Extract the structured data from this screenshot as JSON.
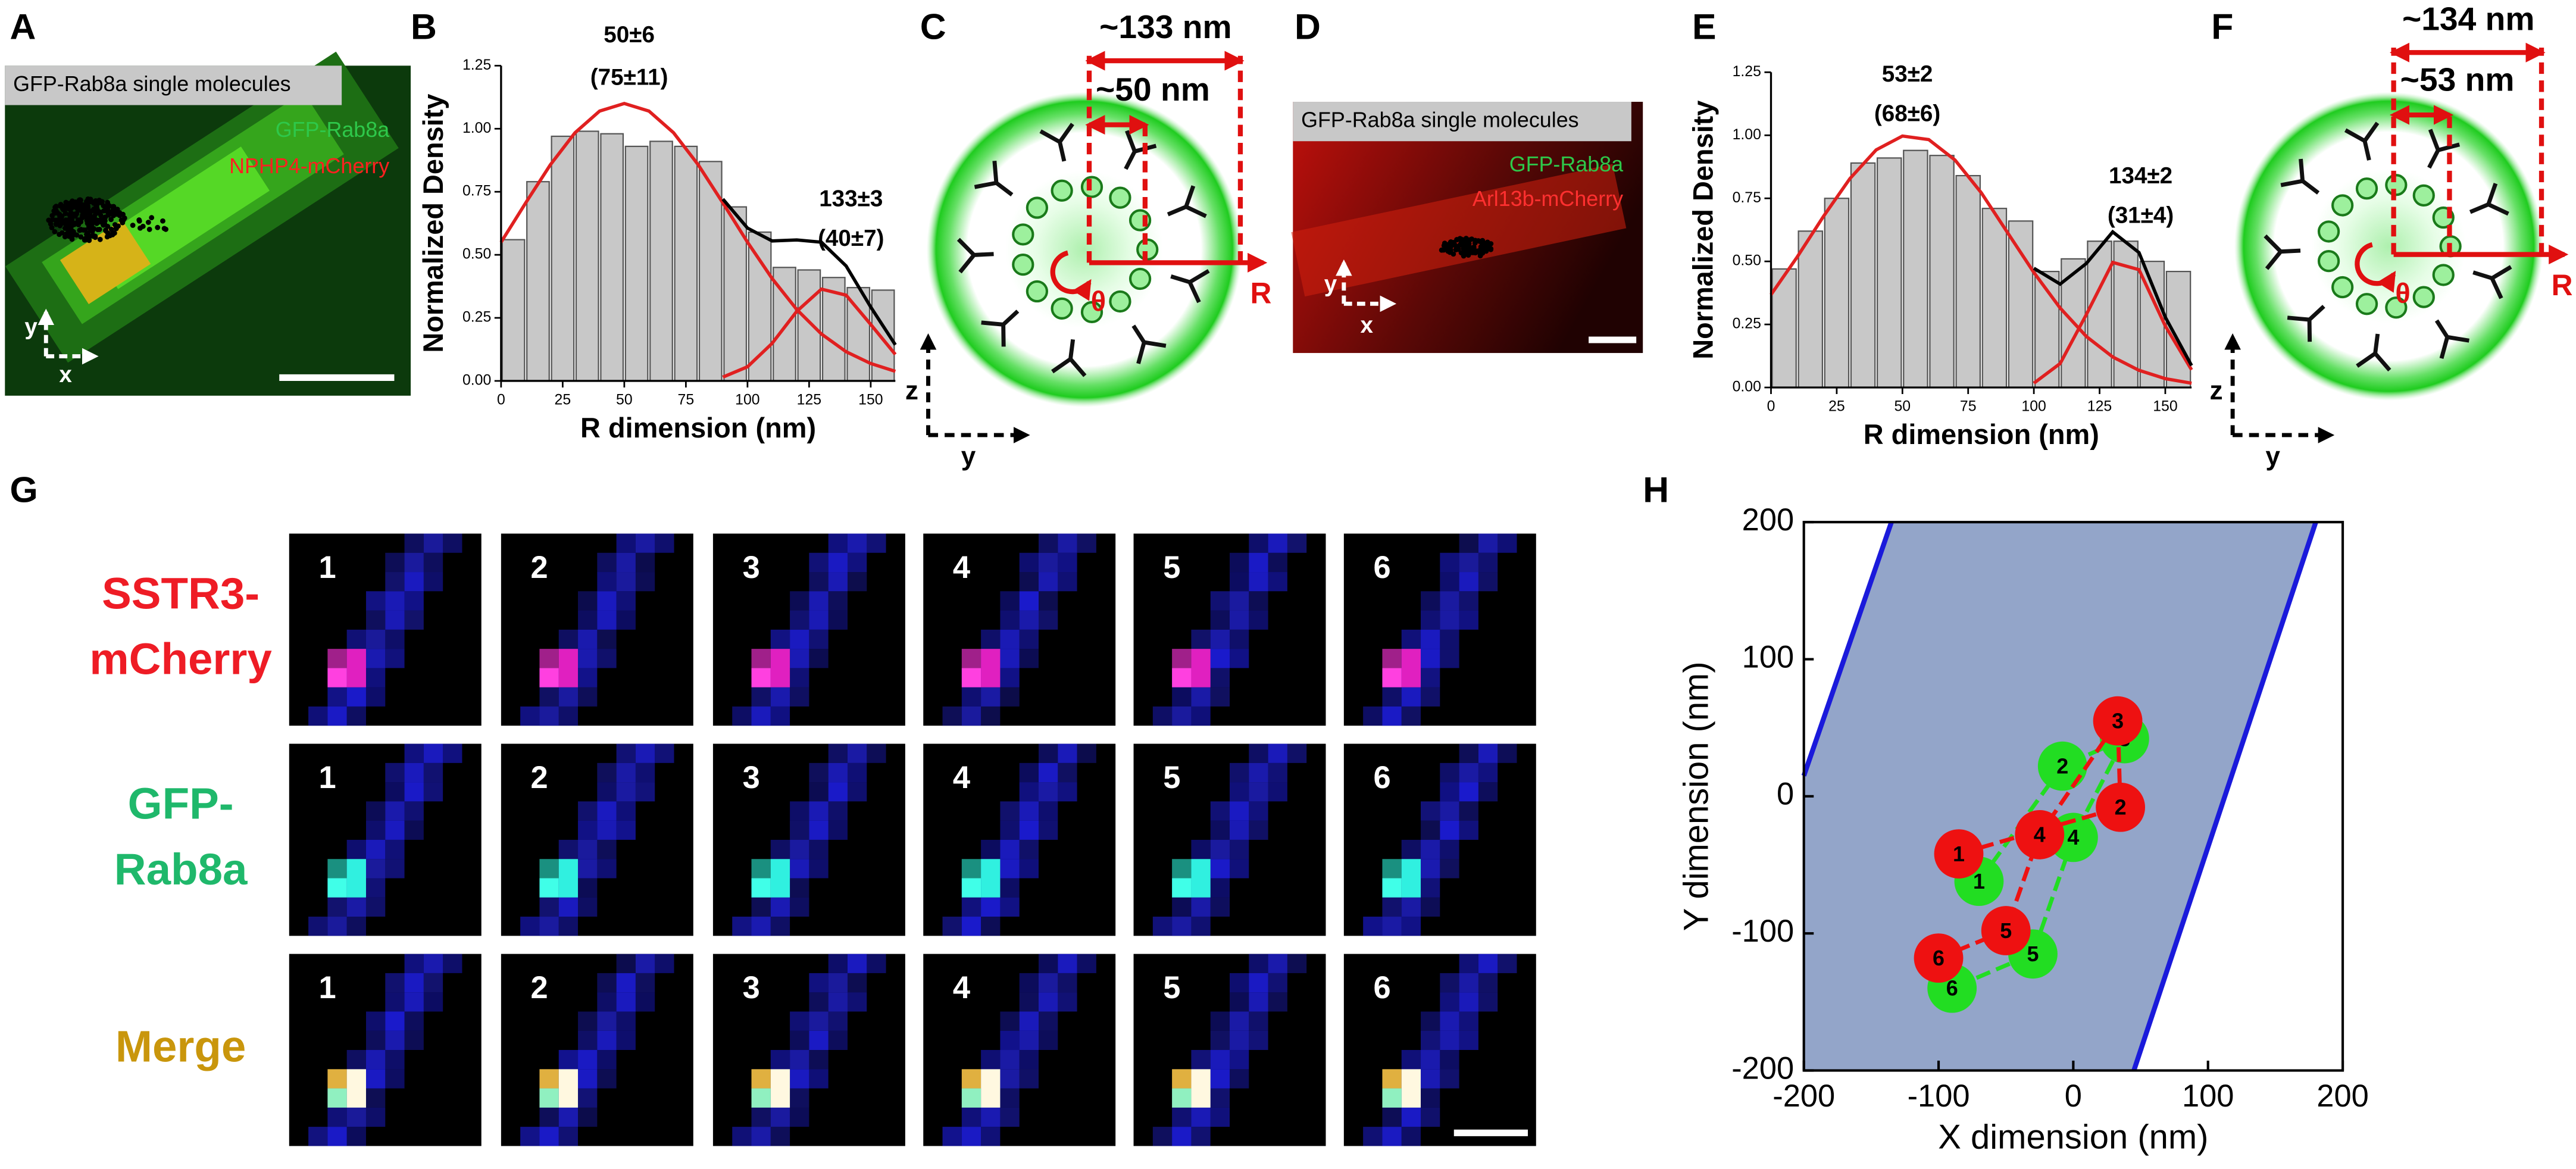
{
  "panel_labels": [
    "A",
    "B",
    "C",
    "D",
    "E",
    "F",
    "G",
    "H"
  ],
  "panel_a": {
    "title": "GFP-Rab8a single molecules",
    "channel_green": "GFP-Rab8a",
    "channel_red": "NPHP4-mCherry",
    "axis_y": "y",
    "axis_x": "x"
  },
  "panel_c": {
    "outer": "~133 nm",
    "inner": "~50 nm",
    "radius": "R",
    "angle": "θ",
    "axis_z": "z",
    "axis_y": "y"
  },
  "panel_d": {
    "title": "GFP-Rab8a single molecules",
    "channel_green": "GFP-Rab8a",
    "channel_red": "Arl13b-mCherry",
    "axis_y": "y",
    "axis_x": "x"
  },
  "panel_f": {
    "outer": "~134 nm",
    "inner": "~53 nm",
    "radius": "R",
    "angle": "θ",
    "axis_z": "z",
    "axis_y": "y"
  },
  "panel_g": {
    "rows": [
      [
        "SSTR3-",
        "mCherry"
      ],
      [
        "GFP-",
        "Rab8a"
      ],
      [
        "Merge"
      ]
    ],
    "row_colors": [
      "#ee1c25",
      "#1fb86b",
      "#c9960c"
    ],
    "frames": [
      "1",
      "2",
      "3",
      "4",
      "5",
      "6"
    ]
  },
  "chart_data": [
    {
      "type": "histogram",
      "ylabel": "Normalized Density",
      "xlabel": "R dimension (nm)",
      "bins": [
        0,
        10,
        20,
        30,
        40,
        50,
        60,
        70,
        80,
        90,
        100,
        110,
        120,
        130,
        140,
        150,
        160
      ],
      "values": [
        0.56,
        0.79,
        0.97,
        0.99,
        0.98,
        0.93,
        0.95,
        0.93,
        0.87,
        0.69,
        0.59,
        0.45,
        0.44,
        0.41,
        0.37,
        0.36
      ],
      "color": "#c8c8c8",
      "xlim": [
        0,
        160
      ],
      "xticks": [
        0,
        25,
        50,
        75,
        100,
        125,
        150
      ],
      "ylim": [
        0,
        1.25
      ],
      "yticks": [
        {
          "value": 0,
          "label": "0.00"
        },
        0.25,
        {
          "value": 0.5,
          "label": "0.50"
        },
        0.75,
        {
          "value": 1,
          "label": "1.00"
        },
        1.25
      ],
      "fits": [
        {
          "color": "#e02020",
          "x": [
            0,
            10,
            20,
            30,
            40,
            50,
            60,
            70,
            80,
            90,
            100,
            110,
            120,
            130,
            140,
            150,
            160
          ],
          "values": [
            0.55,
            0.706,
            0.857,
            0.984,
            1.07,
            1.1,
            1.07,
            0.984,
            0.857,
            0.706,
            0.55,
            0.406,
            0.283,
            0.186,
            0.116,
            0.069,
            0.038
          ]
        },
        {
          "color": "#e02020",
          "x": [
            90,
            100,
            110,
            120,
            130,
            140,
            150,
            160
          ],
          "values": [
            0.015,
            0.056,
            0.149,
            0.276,
            0.364,
            0.34,
            0.224,
            0.105
          ]
        },
        {
          "color": "#000000",
          "x": [
            90,
            100,
            110,
            120,
            130,
            140,
            150,
            160
          ],
          "values": [
            0.721,
            0.606,
            0.555,
            0.559,
            0.55,
            0.456,
            0.293,
            0.143
          ]
        }
      ],
      "annotations": [
        "50±6",
        "(75±11)",
        "133±3",
        "(40±7)"
      ]
    },
    {
      "type": "histogram",
      "ylabel": "Normalized Density",
      "xlabel": "R dimension (nm)",
      "bins": [
        0,
        10,
        20,
        30,
        40,
        50,
        60,
        70,
        80,
        90,
        100,
        110,
        120,
        130,
        140,
        150,
        160
      ],
      "values": [
        0.47,
        0.62,
        0.75,
        0.89,
        0.91,
        0.94,
        0.92,
        0.84,
        0.71,
        0.66,
        0.46,
        0.51,
        0.58,
        0.58,
        0.5,
        0.46
      ],
      "color": "#c8c8c8",
      "xlim": [
        0,
        160
      ],
      "xticks": [
        0,
        25,
        50,
        75,
        100,
        125,
        150
      ],
      "ylim": [
        0,
        1.25
      ],
      "yticks": [
        {
          "value": 0,
          "label": "0.00"
        },
        0.25,
        {
          "value": 0.5,
          "label": "0.50"
        },
        0.75,
        {
          "value": 1,
          "label": "1.00"
        },
        1.25
      ],
      "fits": [
        {
          "color": "#e02020",
          "x": [
            0,
            10,
            20,
            30,
            40,
            50,
            60,
            70,
            80,
            90,
            100,
            110,
            120,
            130,
            140,
            150,
            160
          ],
          "values": [
            0.368,
            0.518,
            0.679,
            0.828,
            0.942,
            0.997,
            0.983,
            0.902,
            0.772,
            0.614,
            0.456,
            0.315,
            0.202,
            0.121,
            0.068,
            0.035,
            0.017
          ]
        },
        {
          "color": "#e02020",
          "x": [
            100,
            110,
            120,
            130,
            140,
            150,
            160
          ],
          "values": [
            0.017,
            0.095,
            0.29,
            0.496,
            0.467,
            0.244,
            0.07
          ]
        },
        {
          "color": "#000000",
          "x": [
            100,
            110,
            120,
            130,
            140,
            150,
            160
          ],
          "values": [
            0.473,
            0.41,
            0.492,
            0.617,
            0.535,
            0.279,
            0.087
          ]
        }
      ],
      "annotations": [
        "53±2",
        "(68±6)",
        "134±2",
        "(31±4)"
      ]
    },
    {
      "type": "scatter",
      "xlabel": "X dimension (nm)",
      "ylabel": "Y dimension (nm)",
      "xlim": [
        -200,
        200
      ],
      "xticks": [
        -200,
        -100,
        0,
        100,
        200
      ],
      "ylim": [
        -200,
        200
      ],
      "yticks": [
        -200,
        -100,
        0,
        100,
        200
      ],
      "band": {
        "color": "#93a5c9",
        "edge_color": "#1a1adb",
        "left_edge": {
          "x": [
            -200,
            -135
          ],
          "y": [
            15,
            200
          ]
        },
        "right_edge": {
          "x": [
            45,
            180
          ],
          "y": [
            -200,
            200
          ]
        }
      },
      "series": [
        {
          "color": "#22dd22",
          "x": [
            -70,
            -8,
            38,
            0,
            -30,
            -90
          ],
          "values": [
            -62,
            22,
            42,
            -30,
            -115,
            -140
          ],
          "labels": [
            "1",
            "2",
            "3",
            "4",
            "5",
            "6"
          ]
        },
        {
          "color": "#ee1111",
          "x": [
            -85,
            35,
            33,
            -25,
            -50,
            -100
          ],
          "values": [
            -42,
            -8,
            55,
            -28,
            -98,
            -118
          ],
          "labels": [
            "1",
            "2",
            "3",
            "4",
            "5",
            "6"
          ]
        }
      ]
    }
  ]
}
